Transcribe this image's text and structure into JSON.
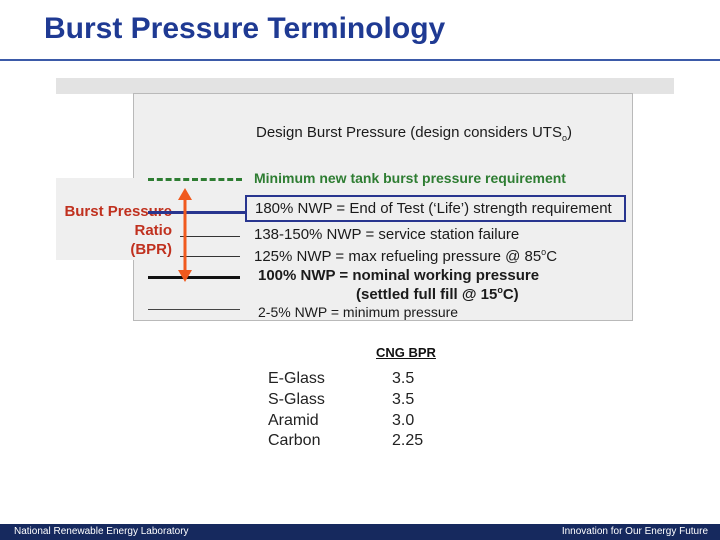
{
  "slide": {
    "title": "Burst Pressure Terminology"
  },
  "bpr_label": {
    "line1": "Burst Pressure",
    "line2": "Ratio",
    "line3": "(BPR)"
  },
  "levels": {
    "design": {
      "text": "Design Burst Pressure (design considers UTS",
      "sub": "o",
      "close": ")"
    },
    "minimum_new": "Minimum new tank burst pressure requirement",
    "end_of_test": "180% NWP = End of Test (‘Life’) strength requirement",
    "service_station": "138-150% NWP = service station failure",
    "refueling": {
      "text": "125% NWP = max refueling pressure @ 85",
      "sup": "o",
      "tail": "C"
    },
    "nominal": "100% NWP = nominal working pressure",
    "settled": {
      "text": "(settled full fill @ 15",
      "sup": "o",
      "tail": "C)"
    },
    "minimum_pressure": "2-5% NWP = minimum pressure"
  },
  "cng_table": {
    "title": "CNG BPR",
    "rows": [
      {
        "material": "E-Glass",
        "value": "3.5"
      },
      {
        "material": "S-Glass",
        "value": "3.5"
      },
      {
        "material": "Aramid",
        "value": "3.0"
      },
      {
        "material": "Carbon",
        "value": "2.25"
      }
    ]
  },
  "footer": {
    "left": "National Renewable Energy Laboratory",
    "right": "Innovation for Our Energy Future"
  },
  "colors": {
    "title": "#1f3a93",
    "green": "#2e7d32",
    "blue_box": "#28358f",
    "bpr_red": "#c0311f",
    "arrow": "#f05a1e",
    "footer": "#16295e"
  }
}
